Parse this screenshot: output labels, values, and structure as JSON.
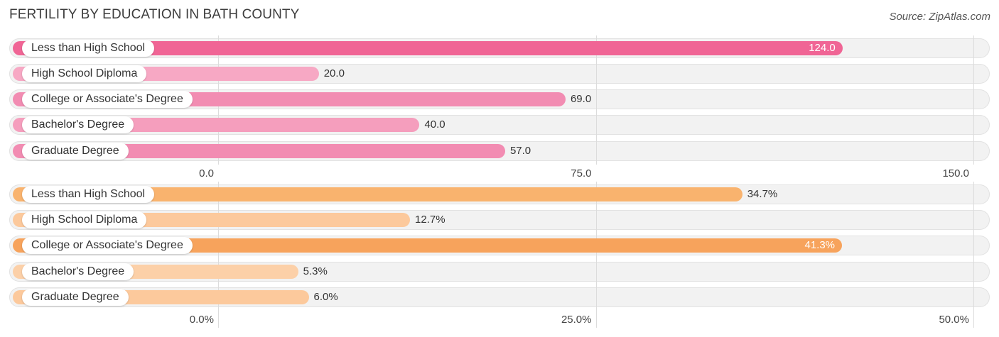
{
  "title": "FERTILITY BY EDUCATION IN BATH COUNTY",
  "source": "Source: ZipAtlas.com",
  "chart_data": [
    {
      "type": "bar",
      "orientation": "horizontal",
      "categories": [
        "Less than High School",
        "High School Diploma",
        "College or Associate's Degree",
        "Bachelor's Degree",
        "Graduate Degree"
      ],
      "values": [
        124.0,
        20.0,
        69.0,
        40.0,
        57.0
      ],
      "value_labels": [
        "124.0",
        "20.0",
        "69.0",
        "40.0",
        "57.0"
      ],
      "xlim": [
        0,
        150
      ],
      "ticks": [
        0,
        75,
        150
      ],
      "tick_labels": [
        "0.0",
        "75.0",
        "150.0"
      ],
      "colors": [
        "#f06595",
        "#f7a8c4",
        "#f28cb2",
        "#f59ebd",
        "#f28cb2"
      ],
      "grid": true
    },
    {
      "type": "bar",
      "orientation": "horizontal",
      "categories": [
        "Less than High School",
        "High School Diploma",
        "College or Associate's Degree",
        "Bachelor's Degree",
        "Graduate Degree"
      ],
      "values": [
        34.7,
        12.7,
        41.3,
        5.3,
        6.0
      ],
      "value_labels": [
        "34.7%",
        "12.7%",
        "41.3%",
        "5.3%",
        "6.0%"
      ],
      "xlim": [
        0,
        50
      ],
      "ticks": [
        0,
        25,
        50
      ],
      "tick_labels": [
        "0.0%",
        "25.0%",
        "50.0%"
      ],
      "colors": [
        "#f9b36e",
        "#fcc99c",
        "#f7a35c",
        "#fcd0a8",
        "#fcc99c"
      ],
      "grid": true
    }
  ]
}
